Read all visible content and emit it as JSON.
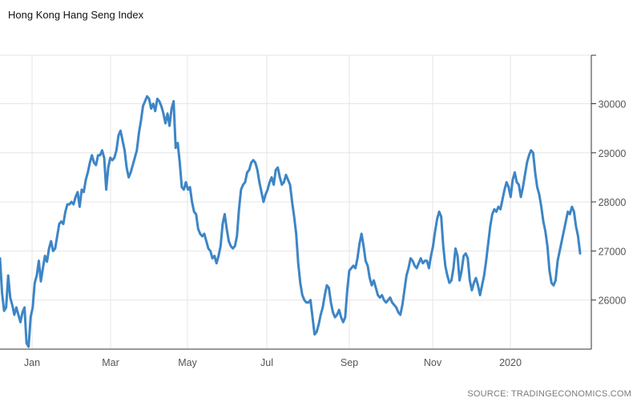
{
  "chart_data": {
    "type": "line",
    "title": "Hong Kong Hang Seng Index",
    "source": "SOURCE: TRADINGECONOMICS.COM",
    "xlabel": "",
    "ylabel": "",
    "ylim": [
      25000,
      31000
    ],
    "y_ticks": [
      26000,
      27000,
      28000,
      29000,
      30000
    ],
    "x_ticks": [
      "Jan",
      "Mar",
      "May",
      "Jul",
      "Sep",
      "Nov",
      "2020"
    ],
    "grid": true,
    "legend": "none",
    "color": "#3d85c6",
    "series": [
      {
        "values": [
          26850,
          26150,
          25780,
          25850,
          26500,
          26050,
          25900,
          25700,
          25850,
          25700,
          25550,
          25750,
          25850,
          25120,
          25050,
          25650,
          25850,
          26350,
          26500,
          26800,
          26380,
          26650,
          26900,
          26780,
          27050,
          27200,
          27000,
          27050,
          27300,
          27550,
          27600,
          27550,
          27800,
          27950,
          27950,
          28000,
          27950,
          28100,
          28200,
          27900,
          28250,
          28200,
          28450,
          28600,
          28800,
          28950,
          28800,
          28750,
          28950,
          28950,
          29050,
          28900,
          28250,
          28700,
          28900,
          28850,
          28900,
          29050,
          29350,
          29450,
          29250,
          29050,
          28700,
          28500,
          28600,
          28750,
          28900,
          29050,
          29400,
          29650,
          29950,
          30050,
          30150,
          30100,
          29900,
          30000,
          29850,
          30100,
          30050,
          29950,
          29800,
          29600,
          29800,
          29550,
          29900,
          30050,
          29100,
          29200,
          28800,
          28300,
          28250,
          28400,
          28250,
          28300,
          28000,
          27800,
          27750,
          27450,
          27350,
          27300,
          27350,
          27200,
          27050,
          27000,
          26850,
          26900,
          26750,
          26900,
          27100,
          27550,
          27750,
          27450,
          27200,
          27100,
          27050,
          27100,
          27300,
          27850,
          28250,
          28350,
          28400,
          28600,
          28650,
          28800,
          28850,
          28800,
          28650,
          28400,
          28200,
          28000,
          28150,
          28250,
          28400,
          28500,
          28350,
          28650,
          28700,
          28500,
          28350,
          28400,
          28550,
          28450,
          28350,
          28000,
          27700,
          27350,
          26750,
          26350,
          26100,
          26000,
          25950,
          25950,
          26000,
          25650,
          25300,
          25350,
          25500,
          25700,
          25850,
          26100,
          26300,
          26250,
          25950,
          25750,
          25650,
          25700,
          25800,
          25650,
          25550,
          25650,
          26200,
          26600,
          26650,
          26700,
          26650,
          26850,
          27150,
          27350,
          27100,
          26800,
          26700,
          26450,
          26300,
          26400,
          26250,
          26100,
          26050,
          26100,
          26000,
          25950,
          26000,
          26050,
          25950,
          25900,
          25850,
          25750,
          25700,
          25900,
          26200,
          26500,
          26650,
          26850,
          26800,
          26700,
          26650,
          26750,
          26850,
          26750,
          26800,
          26800,
          26650,
          26900,
          27100,
          27400,
          27650,
          27800,
          27700,
          27100,
          26700,
          26500,
          26350,
          26400,
          26650,
          27050,
          26900,
          26400,
          26600,
          26900,
          26950,
          26850,
          26400,
          26200,
          26350,
          26450,
          26300,
          26100,
          26300,
          26500,
          26800,
          27150,
          27500,
          27750,
          27850,
          27800,
          27900,
          27850,
          28050,
          28250,
          28400,
          28300,
          28100,
          28450,
          28600,
          28400,
          28350,
          28100,
          28300,
          28550,
          28800,
          28950,
          29050,
          29000,
          28600,
          28300,
          28150,
          27900,
          27600,
          27400,
          27100,
          26600,
          26350,
          26300,
          26400,
          26800,
          27000,
          27200,
          27400,
          27600,
          27800,
          27750,
          27900,
          27800,
          27500,
          27300,
          26950
        ]
      }
    ]
  }
}
